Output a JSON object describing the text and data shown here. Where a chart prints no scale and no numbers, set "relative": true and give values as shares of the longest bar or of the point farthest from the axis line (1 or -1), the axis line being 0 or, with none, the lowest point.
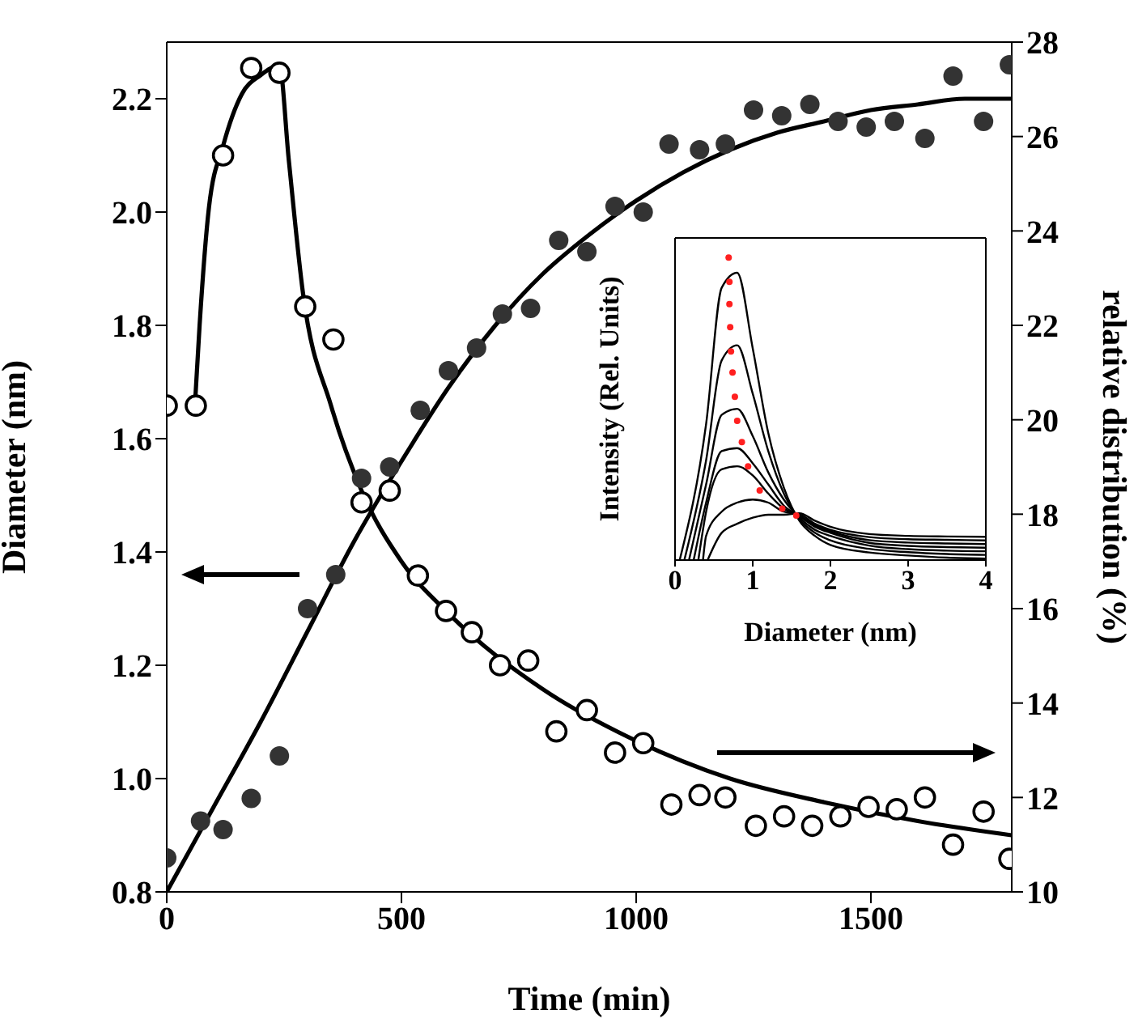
{
  "chart_data": [
    {
      "type": "scatter",
      "xlabel": "Time (min)",
      "ylabel": "Diameter (nm)",
      "y2label": "relative distribution (%)",
      "xlim": [
        0,
        1800
      ],
      "xticks": [
        0,
        500,
        1000,
        1500
      ],
      "ylim": [
        0.8,
        2.3
      ],
      "yticks": [
        0.8,
        {
          "value": 1,
          "label": "1.0"
        },
        1.2,
        1.4,
        1.6,
        1.8,
        {
          "value": 2,
          "label": "2.0"
        },
        2.2
      ],
      "y2lim": [
        10,
        28
      ],
      "y2ticks": [
        10,
        12,
        14,
        16,
        18,
        20,
        22,
        24,
        26,
        28
      ],
      "series": [
        {
          "marker": "circle",
          "color": "#333333",
          "x": [
            0,
            72,
            120,
            180,
            240,
            300,
            360,
            415,
            475,
            540,
            600,
            660,
            715,
            775,
            835,
            895,
            955,
            1015,
            1070,
            1135,
            1190,
            1250,
            1310,
            1370,
            1430,
            1490,
            1550,
            1615,
            1675,
            1740,
            1795
          ],
          "values": [
            0.86,
            0.925,
            0.91,
            0.965,
            1.04,
            1.3,
            1.36,
            1.53,
            1.55,
            1.65,
            1.72,
            1.76,
            1.82,
            1.83,
            1.95,
            1.93,
            2.01,
            2.0,
            2.12,
            2.11,
            2.12,
            2.18,
            2.17,
            2.19,
            2.16,
            2.15,
            2.16,
            2.13,
            2.24,
            2.16,
            2.26
          ]
        },
        {
          "type": "line",
          "color": "#000000",
          "x": [
            0,
            100,
            200,
            300,
            400,
            500,
            600,
            700,
            800,
            900,
            1000,
            1100,
            1200,
            1300,
            1400,
            1500,
            1600,
            1700,
            1800
          ],
          "values": [
            0.8,
            0.95,
            1.1,
            1.26,
            1.42,
            1.56,
            1.69,
            1.8,
            1.89,
            1.96,
            2.02,
            2.07,
            2.11,
            2.14,
            2.16,
            2.18,
            2.19,
            2.2,
            2.2
          ]
        },
        {
          "marker": "circle",
          "axis": "y2",
          "color": "#000000",
          "x": [
            0,
            62,
            120,
            180,
            240,
            295,
            355,
            415,
            475,
            535,
            595,
            650,
            710,
            770,
            830,
            895,
            955,
            1015,
            1075,
            1135,
            1190,
            1255,
            1315,
            1375,
            1435,
            1495,
            1555,
            1615,
            1675,
            1740,
            1795
          ],
          "values": [
            20.3,
            20.3,
            25.6,
            27.45,
            27.35,
            22.4,
            21.7,
            18.25,
            18.5,
            16.7,
            15.95,
            15.5,
            14.8,
            14.9,
            13.4,
            13.85,
            12.95,
            13.15,
            11.85,
            12.05,
            12.0,
            11.4,
            11.6,
            11.4,
            11.6,
            11.8,
            11.75,
            12.0,
            11.0,
            11.7,
            10.7
          ]
        },
        {
          "type": "line",
          "axis": "y2",
          "color": "#000000",
          "x": [
            60,
            70,
            90,
            120,
            160,
            200,
            240,
            260,
            290,
            350,
            415,
            500,
            600,
            800,
            1000,
            1200,
            1400,
            1600,
            1800
          ],
          "values": [
            20.3,
            22,
            24.5,
            25.8,
            26.9,
            27.3,
            27.5,
            25.5,
            22.7,
            20.3,
            18.5,
            17.0,
            15.9,
            14.3,
            13.2,
            12.4,
            11.9,
            11.5,
            11.2
          ]
        }
      ]
    },
    {
      "type": "line",
      "relative": true,
      "xlabel": "Diameter (nm)",
      "ylabel": "Intensity (Rel. Units)",
      "xlim": [
        0,
        4
      ],
      "xticks": [
        0,
        1,
        2,
        3,
        4
      ],
      "series": [
        {
          "color": "#000000",
          "x": [
            0.06,
            0.4,
            0.6,
            0.8,
            1.0,
            1.2,
            1.4,
            1.6,
            1.8,
            2.0,
            2.5,
            3.0,
            3.5,
            4.0
          ],
          "values": [
            0,
            0.45,
            0.9,
            0.95,
            0.7,
            0.42,
            0.24,
            0.13,
            0.08,
            0.05,
            0.025,
            0.015,
            0.008,
            0.005
          ]
        },
        {
          "color": "#000000",
          "x": [
            0.12,
            0.4,
            0.6,
            0.8,
            1.0,
            1.2,
            1.4,
            1.6,
            1.8,
            2.0,
            2.5,
            3.0,
            3.5,
            4.0
          ],
          "values": [
            0,
            0.33,
            0.66,
            0.71,
            0.55,
            0.36,
            0.22,
            0.135,
            0.09,
            0.065,
            0.037,
            0.026,
            0.02,
            0.017
          ]
        },
        {
          "color": "#000000",
          "x": [
            0.18,
            0.4,
            0.6,
            0.8,
            1.0,
            1.2,
            1.4,
            1.6,
            1.8,
            2.0,
            2.5,
            3.0,
            3.5,
            4.0
          ],
          "values": [
            0,
            0.25,
            0.48,
            0.5,
            0.41,
            0.29,
            0.2,
            0.14,
            0.1,
            0.08,
            0.048,
            0.036,
            0.031,
            0.029
          ]
        },
        {
          "color": "#000000",
          "x": [
            0.24,
            0.4,
            0.6,
            0.8,
            1.0,
            1.2,
            1.4,
            1.6,
            1.8,
            2.0,
            2.5,
            3.0,
            3.5,
            4.0
          ],
          "values": [
            0,
            0.19,
            0.36,
            0.37,
            0.32,
            0.25,
            0.18,
            0.145,
            0.11,
            0.09,
            0.057,
            0.047,
            0.043,
            0.041
          ]
        },
        {
          "color": "#000000",
          "x": [
            0.3,
            0.4,
            0.6,
            0.8,
            1.0,
            1.2,
            1.4,
            1.6,
            1.8,
            2.0,
            2.5,
            3.0,
            3.5,
            4.0
          ],
          "values": [
            0,
            0.16,
            0.3,
            0.31,
            0.28,
            0.22,
            0.17,
            0.148,
            0.115,
            0.095,
            0.066,
            0.058,
            0.055,
            0.053
          ]
        },
        {
          "color": "#000000",
          "x": [
            0.36,
            0.4,
            0.6,
            0.8,
            1.0,
            1.2,
            1.4,
            1.6,
            1.8,
            2.0,
            2.5,
            3.0,
            3.5,
            4.0
          ],
          "values": [
            0,
            0.08,
            0.16,
            0.19,
            0.2,
            0.19,
            0.16,
            0.152,
            0.12,
            0.1,
            0.076,
            0.069,
            0.067,
            0.065
          ]
        },
        {
          "color": "#000000",
          "x": [
            0.42,
            0.6,
            0.8,
            1.0,
            1.2,
            1.4,
            1.6,
            1.8,
            2.0,
            2.5,
            3.0,
            3.5,
            4.0
          ],
          "values": [
            0,
            0.09,
            0.12,
            0.14,
            0.15,
            0.15,
            0.155,
            0.13,
            0.11,
            0.086,
            0.08,
            0.078,
            0.077
          ]
        },
        {
          "type": "scatter",
          "marker": "circle",
          "color": "#ff2020",
          "x": [
            0.69,
            0.7,
            0.7,
            0.71,
            0.72,
            0.74,
            0.77,
            0.8,
            0.86,
            0.94,
            1.09,
            1.38,
            1.56
          ],
          "values": [
            1.0,
            0.92,
            0.846,
            0.77,
            0.69,
            0.62,
            0.54,
            0.46,
            0.39,
            0.31,
            0.23,
            0.17,
            0.147
          ]
        }
      ]
    }
  ]
}
